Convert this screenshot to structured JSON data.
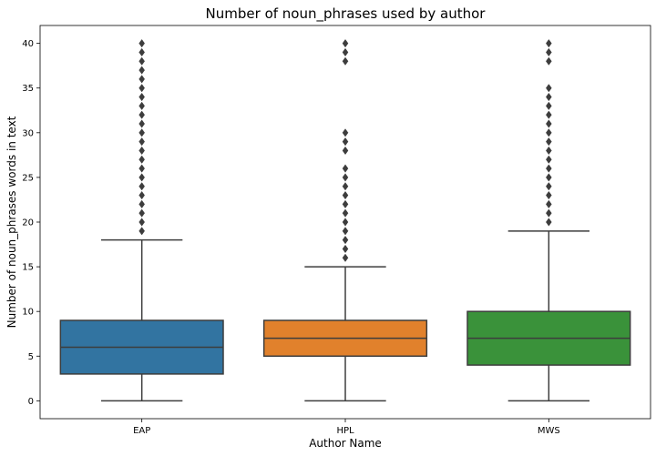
{
  "chart_data": {
    "type": "box",
    "title": "Number of noun_phrases used by author",
    "xlabel": "Author Name",
    "ylabel": "Number of noun_phrases words in text",
    "ylim": [
      -2,
      42
    ],
    "yticks": [
      0,
      5,
      10,
      15,
      20,
      25,
      30,
      35,
      40
    ],
    "grid": false,
    "categories": [
      "EAP",
      "HPL",
      "MWS"
    ],
    "boxes": [
      {
        "category": "EAP",
        "color": "#3274a1",
        "whisker_low": 0,
        "q1": 3,
        "median": 6,
        "q3": 9,
        "whisker_high": 18,
        "outliers": [
          19,
          20,
          21,
          22,
          23,
          24,
          25,
          26,
          27,
          28,
          29,
          30,
          31,
          32,
          33,
          34,
          35,
          36,
          37,
          38,
          39,
          40
        ]
      },
      {
        "category": "HPL",
        "color": "#e1812c",
        "whisker_low": 0,
        "q1": 5,
        "median": 7,
        "q3": 9,
        "whisker_high": 15,
        "outliers": [
          16,
          17,
          18,
          19,
          20,
          21,
          22,
          23,
          24,
          25,
          26,
          28,
          29,
          30,
          38,
          39,
          40
        ]
      },
      {
        "category": "MWS",
        "color": "#3a923a",
        "whisker_low": 0,
        "q1": 4,
        "median": 7,
        "q3": 10,
        "whisker_high": 19,
        "outliers": [
          20,
          21,
          22,
          23,
          24,
          25,
          26,
          27,
          28,
          29,
          30,
          31,
          32,
          33,
          34,
          35,
          38,
          39,
          40
        ]
      }
    ]
  }
}
